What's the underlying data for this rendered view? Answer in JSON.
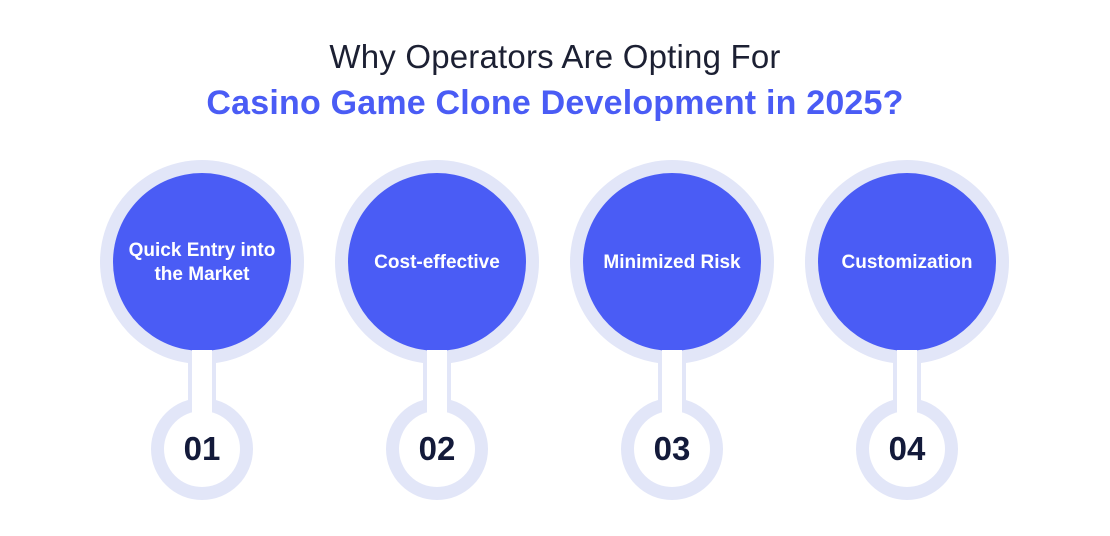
{
  "title": {
    "line1": "Why Operators Are Opting For",
    "line2": "Casino Game Clone Development in 2025?"
  },
  "colors": {
    "accent": "#4a5cf5",
    "outer_ring": "#e2e6f8",
    "number_text": "#131a3a"
  },
  "items": [
    {
      "label": "Quick Entry into the Market",
      "number": "01"
    },
    {
      "label": "Cost-effective",
      "number": "02"
    },
    {
      "label": "Minimized Risk",
      "number": "03"
    },
    {
      "label": "Customization",
      "number": "04"
    }
  ]
}
